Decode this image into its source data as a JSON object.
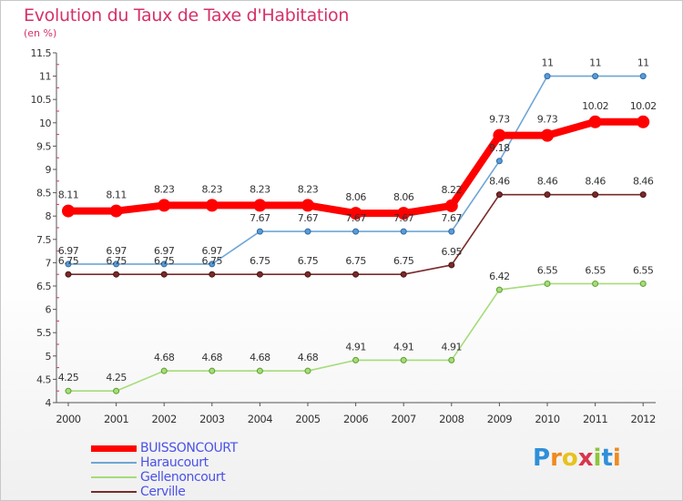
{
  "header": {
    "title": "Evolution du Taux de Taxe d'Habitation",
    "subtitle": "(en %)"
  },
  "logo": {
    "text": "Proxiti",
    "letters": [
      "P",
      "r",
      "o",
      "x",
      "i",
      "t",
      "i"
    ],
    "colors": [
      "#2f8fd8",
      "#f08a1c",
      "#e8c21c",
      "#d8364c",
      "#8cc63c",
      "#2f8fd8",
      "#f08a1c"
    ]
  },
  "chart_data": {
    "type": "line",
    "title": "Evolution du Taux de Taxe d'Habitation",
    "subtitle": "(en %)",
    "x": [
      "2000",
      "2001",
      "2002",
      "2003",
      "2004",
      "2005",
      "2006",
      "2007",
      "2008",
      "2009",
      "2010",
      "2011",
      "2012"
    ],
    "ylim": [
      4,
      11.5
    ],
    "yticks": [
      "4",
      "4.5",
      "5",
      "5.5",
      "6",
      "6.5",
      "7",
      "7.5",
      "8",
      "8.5",
      "9",
      "9.5",
      "10",
      "10.5",
      "11",
      "11.5"
    ],
    "grid": false,
    "legend_position": "bottom-left",
    "series": [
      {
        "name": "BUISSONCOURT",
        "color": "#ff0000",
        "values": [
          8.11,
          8.11,
          8.23,
          8.23,
          8.23,
          8.23,
          8.06,
          8.06,
          8.22,
          9.73,
          9.73,
          10.02,
          10.02
        ],
        "labels": [
          "8.11",
          "8.11",
          "8.23",
          "8.23",
          "8.23",
          "8.23",
          "8.06",
          "8.06",
          "8.22",
          "9.73",
          "9.73",
          "10.02",
          "10.02"
        ]
      },
      {
        "name": "Haraucourt",
        "color": "#6ea6d6",
        "values": [
          6.97,
          6.97,
          6.97,
          6.97,
          7.67,
          7.67,
          7.67,
          7.67,
          7.67,
          9.18,
          11,
          11,
          11
        ],
        "labels": [
          "6.97",
          "6.97",
          "6.97",
          "6.97",
          "7.67",
          "7.67",
          "7.67",
          "7.67",
          "7.67",
          "9.18",
          "11",
          "11",
          "11"
        ]
      },
      {
        "name": "Gellenoncourt",
        "color": "#a6dc7a",
        "values": [
          4.25,
          4.25,
          4.68,
          4.68,
          4.68,
          4.68,
          4.91,
          4.91,
          4.91,
          6.42,
          6.55,
          6.55,
          6.55
        ],
        "labels": [
          "4.25",
          "4.25",
          "4.68",
          "4.68",
          "4.68",
          "4.68",
          "4.91",
          "4.91",
          "4.91",
          "6.42",
          "6.55",
          "6.55",
          "6.55"
        ]
      },
      {
        "name": "Cerville",
        "color": "#7a2a2a",
        "values": [
          6.75,
          6.75,
          6.75,
          6.75,
          6.75,
          6.75,
          6.75,
          6.75,
          6.95,
          8.46,
          8.46,
          8.46,
          8.46
        ],
        "labels": [
          "6.75",
          "6.75",
          "6.75",
          "6.75",
          "6.75",
          "6.75",
          "6.75",
          "6.75",
          "6.95",
          "8.46",
          "8.46",
          "8.46",
          "8.46"
        ]
      }
    ]
  }
}
